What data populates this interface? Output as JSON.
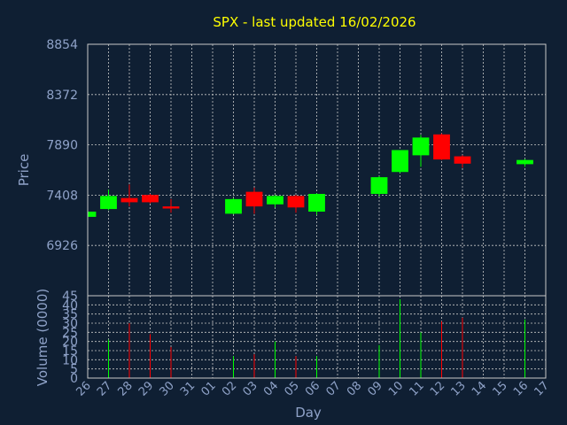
{
  "chart_data": {
    "title": "SPX - last updated 16/02/2026",
    "colors": {
      "up": "#00ff00",
      "down": "#ff0000",
      "background": "#0f1f33",
      "text": "#8fa2c8",
      "title": "#ffff00",
      "grid": "#c8c8c8"
    },
    "price_panel": {
      "type": "candlestick",
      "ylabel": "Price",
      "ylim": [
        6444,
        8854
      ],
      "yticks": [
        8854,
        8372,
        7890,
        7408,
        6926
      ],
      "grid": true
    },
    "volume_panel": {
      "type": "bar",
      "ylabel": "Volume (0000)",
      "ylim": [
        0,
        45
      ],
      "yticks": [
        45,
        40,
        35,
        30,
        25,
        20,
        15,
        10,
        5,
        0
      ],
      "grid": true
    },
    "xlabel": "Day",
    "x_ticks": [
      "26",
      "27",
      "28",
      "29",
      "30",
      "31",
      "01",
      "02",
      "03",
      "04",
      "05",
      "06",
      "07",
      "08",
      "09",
      "10",
      "11",
      "12",
      "13",
      "14",
      "15",
      "16",
      "17"
    ],
    "candles": [
      {
        "day_index": 0,
        "open": 7200,
        "close": 7250,
        "high": 7260,
        "low": 7195,
        "volume": 0
      },
      {
        "day_index": 1,
        "open": 7275,
        "close": 7400,
        "high": 7460,
        "low": 7265,
        "volume": 21
      },
      {
        "day_index": 2,
        "open": 7380,
        "close": 7340,
        "high": 7510,
        "low": 7300,
        "volume": 30
      },
      {
        "day_index": 3,
        "open": 7410,
        "close": 7340,
        "high": 7420,
        "low": 7330,
        "volume": 24
      },
      {
        "day_index": 4,
        "open": 7300,
        "close": 7280,
        "high": 7370,
        "low": 7240,
        "volume": 17
      },
      {
        "day_index": 7,
        "open": 7230,
        "close": 7370,
        "high": 7380,
        "low": 7225,
        "volume": 12
      },
      {
        "day_index": 8,
        "open": 7440,
        "close": 7300,
        "high": 7480,
        "low": 7230,
        "volume": 13
      },
      {
        "day_index": 9,
        "open": 7320,
        "close": 7400,
        "high": 7410,
        "low": 7290,
        "volume": 20
      },
      {
        "day_index": 10,
        "open": 7400,
        "close": 7290,
        "high": 7410,
        "low": 7240,
        "volume": 12
      },
      {
        "day_index": 11,
        "open": 7250,
        "close": 7420,
        "high": 7425,
        "low": 7220,
        "volume": 12
      },
      {
        "day_index": 14,
        "open": 7420,
        "close": 7580,
        "high": 7590,
        "low": 7395,
        "volume": 18
      },
      {
        "day_index": 15,
        "open": 7630,
        "close": 7840,
        "high": 7840,
        "low": 7620,
        "volume": 43
      },
      {
        "day_index": 16,
        "open": 7790,
        "close": 7960,
        "high": 7985,
        "low": 7680,
        "volume": 25
      },
      {
        "day_index": 17,
        "open": 7990,
        "close": 7750,
        "high": 8000,
        "low": 7745,
        "volume": 31
      },
      {
        "day_index": 18,
        "open": 7780,
        "close": 7710,
        "high": 7790,
        "low": 7670,
        "volume": 33
      },
      {
        "day_index": 21,
        "open": 7705,
        "close": 7745,
        "high": 7755,
        "low": 7680,
        "volume": 32
      }
    ]
  }
}
